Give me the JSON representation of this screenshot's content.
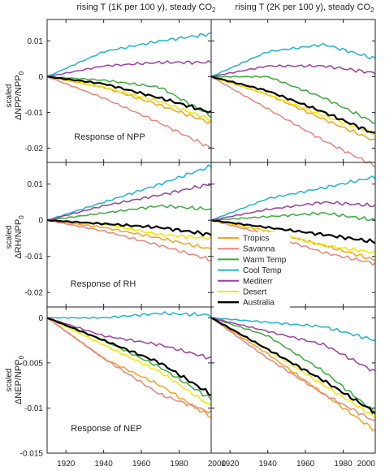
{
  "column_titles": [
    {
      "main": "rising T (1K per 100 y), steady CO",
      "sub": "2"
    },
    {
      "main": "rising T (2K per 100 y), steady CO",
      "sub": "2"
    }
  ],
  "row_ylabels": [
    {
      "top": "scaled",
      "main": "ΔNPP/NPP",
      "sub": "0"
    },
    {
      "top": "scaled",
      "main": "ΔRH/NPP",
      "sub": "0"
    },
    {
      "top": "scaled",
      "main": "ΔNEP/NPP",
      "sub": "0"
    }
  ],
  "annotations": [
    "Response of NPP",
    "Response of RH",
    "Response of NEP"
  ],
  "x_tick_labels": [
    "1920",
    "1940",
    "1960",
    "1980",
    "2000"
  ],
  "legend": [
    "Tropics",
    "Savanna",
    "Warm Temp",
    "Cool Temp",
    "Mediterr",
    "Desert",
    "Australia"
  ],
  "colors": {
    "Tropics": "#f5a31a",
    "Savanna": "#e8857a",
    "Warm Temp": "#3aab3a",
    "Cool Temp": "#1fb3cf",
    "Mediterr": "#9b3f9f",
    "Desert": "#f2e600",
    "Australia": "#000000"
  },
  "chart_data": [
    {
      "type": "line",
      "row": 0,
      "col": 0,
      "x": [
        1910,
        1940,
        1970,
        1997
      ],
      "xlim": [
        1910,
        1997
      ],
      "ylim": [
        -0.024,
        0.016
      ],
      "ytick_labels": [
        "0.01",
        "0",
        "-0.01",
        "-0.02"
      ],
      "ytick_values": [
        0.01,
        0,
        -0.01,
        -0.02
      ],
      "series": [
        {
          "name": "Tropics",
          "values": [
            0,
            -0.003,
            -0.008,
            -0.013
          ]
        },
        {
          "name": "Savanna",
          "values": [
            0,
            -0.006,
            -0.013,
            -0.02
          ]
        },
        {
          "name": "Warm Temp",
          "values": [
            0,
            -0.001,
            -0.003,
            -0.011
          ]
        },
        {
          "name": "Cool Temp",
          "values": [
            0,
            0.007,
            0.01,
            0.012
          ]
        },
        {
          "name": "Mediterr",
          "values": [
            0,
            0.003,
            0.004,
            0.004
          ]
        },
        {
          "name": "Desert",
          "values": [
            0,
            -0.003,
            -0.007,
            -0.012
          ]
        },
        {
          "name": "Australia",
          "values": [
            0,
            -0.002,
            -0.006,
            -0.01
          ]
        }
      ]
    },
    {
      "type": "line",
      "row": 0,
      "col": 1,
      "x": [
        1910,
        1940,
        1970,
        1997
      ],
      "xlim": [
        1910,
        1997
      ],
      "ylim": [
        -0.024,
        0.016
      ],
      "ytick_labels": [
        "0.01",
        "0",
        "-0.01",
        "-0.02"
      ],
      "ytick_values": [
        0.01,
        0,
        -0.01,
        -0.02
      ],
      "series": [
        {
          "name": "Tropics",
          "values": [
            0,
            -0.005,
            -0.012,
            -0.018
          ]
        },
        {
          "name": "Savanna",
          "values": [
            0,
            -0.009,
            -0.018,
            -0.025
          ]
        },
        {
          "name": "Warm Temp",
          "values": [
            0,
            0,
            -0.006,
            -0.013
          ]
        },
        {
          "name": "Cool Temp",
          "values": [
            0,
            0.007,
            0.009,
            0.005
          ]
        },
        {
          "name": "Mediterr",
          "values": [
            0,
            0.003,
            0.003,
            0.001
          ]
        },
        {
          "name": "Desert",
          "values": [
            0,
            -0.005,
            -0.011,
            -0.016
          ]
        },
        {
          "name": "Australia",
          "values": [
            0,
            -0.004,
            -0.01,
            -0.016
          ]
        }
      ]
    },
    {
      "type": "line",
      "row": 1,
      "col": 0,
      "x": [
        1910,
        1940,
        1970,
        1997
      ],
      "xlim": [
        1910,
        1997
      ],
      "ylim": [
        -0.024,
        0.016
      ],
      "ytick_labels": [
        "0.01",
        "0",
        "-0.01",
        "-0.02"
      ],
      "ytick_values": [
        0.01,
        0,
        -0.01,
        -0.02
      ],
      "series": [
        {
          "name": "Tropics",
          "values": [
            0,
            -0.002,
            -0.005,
            -0.008
          ]
        },
        {
          "name": "Savanna",
          "values": [
            0,
            -0.003,
            -0.007,
            -0.011
          ]
        },
        {
          "name": "Warm Temp",
          "values": [
            0,
            0.002,
            0.004,
            0.003
          ]
        },
        {
          "name": "Cool Temp",
          "values": [
            0,
            0.005,
            0.01,
            0.015
          ]
        },
        {
          "name": "Mediterr",
          "values": [
            0,
            0.004,
            0.007,
            0.01
          ]
        },
        {
          "name": "Desert",
          "values": [
            0,
            -0.001,
            -0.004,
            -0.005
          ]
        },
        {
          "name": "Australia",
          "values": [
            0,
            -0.001,
            -0.002,
            -0.004
          ]
        }
      ]
    },
    {
      "type": "line",
      "row": 1,
      "col": 1,
      "x": [
        1910,
        1940,
        1970,
        1997
      ],
      "xlim": [
        1910,
        1997
      ],
      "ylim": [
        -0.024,
        0.016
      ],
      "ytick_labels": [
        "0.01",
        "0",
        "-0.01",
        "-0.02"
      ],
      "ytick_values": [
        0.01,
        0,
        -0.01,
        -0.02
      ],
      "series": [
        {
          "name": "Tropics",
          "values": [
            0,
            -0.003,
            -0.007,
            -0.011
          ]
        },
        {
          "name": "Savanna",
          "values": [
            0,
            -0.004,
            -0.009,
            -0.012
          ]
        },
        {
          "name": "Warm Temp",
          "values": [
            0,
            0.001,
            0.002,
            0.0
          ]
        },
        {
          "name": "Cool Temp",
          "values": [
            0,
            0.006,
            0.009,
            0.012
          ]
        },
        {
          "name": "Mediterr",
          "values": [
            0,
            0.003,
            0.005,
            0.004
          ]
        },
        {
          "name": "Desert",
          "values": [
            0,
            -0.003,
            -0.007,
            -0.009
          ]
        },
        {
          "name": "Australia",
          "values": [
            0,
            -0.002,
            -0.004,
            -0.006
          ]
        }
      ]
    },
    {
      "type": "line",
      "row": 2,
      "col": 0,
      "x": [
        1910,
        1940,
        1970,
        1997
      ],
      "xlim": [
        1910,
        1997
      ],
      "ylim": [
        -0.015,
        0.0012
      ],
      "ytick_labels": [
        "0",
        "-0.005",
        "-0.01",
        "-0.015"
      ],
      "ytick_values": [
        0,
        -0.005,
        -0.01,
        -0.015
      ],
      "series": [
        {
          "name": "Tropics",
          "values": [
            0,
            -0.0045,
            -0.0075,
            -0.011
          ]
        },
        {
          "name": "Savanna",
          "values": [
            0,
            -0.0045,
            -0.0085,
            -0.0105
          ]
        },
        {
          "name": "Warm Temp",
          "values": [
            0,
            -0.0025,
            -0.0055,
            -0.009
          ]
        },
        {
          "name": "Cool Temp",
          "values": [
            0,
            0,
            0.0005,
            0.0003
          ]
        },
        {
          "name": "Mediterr",
          "values": [
            0,
            -0.002,
            -0.003,
            -0.0045
          ]
        },
        {
          "name": "Desert",
          "values": [
            0,
            -0.003,
            -0.006,
            -0.0098
          ]
        },
        {
          "name": "Australia",
          "values": [
            0,
            -0.0025,
            -0.005,
            -0.0085
          ]
        }
      ]
    },
    {
      "type": "line",
      "row": 2,
      "col": 1,
      "x": [
        1910,
        1940,
        1970,
        1997
      ],
      "xlim": [
        1910,
        1997
      ],
      "ylim": [
        -0.015,
        0.0012
      ],
      "ytick_labels": [
        "0",
        "-0.005",
        "-0.01",
        "-0.015"
      ],
      "ytick_values": [
        0,
        -0.005,
        -0.01,
        -0.015
      ],
      "series": [
        {
          "name": "Tropics",
          "values": [
            0,
            -0.004,
            -0.0085,
            -0.0125
          ]
        },
        {
          "name": "Savanna",
          "values": [
            0,
            -0.0045,
            -0.0085,
            -0.0115
          ]
        },
        {
          "name": "Warm Temp",
          "values": [
            0,
            -0.002,
            -0.006,
            -0.0105
          ]
        },
        {
          "name": "Cool Temp",
          "values": [
            0,
            -0.0005,
            -0.001,
            -0.0025
          ]
        },
        {
          "name": "Mediterr",
          "values": [
            0,
            -0.0015,
            -0.003,
            -0.006
          ]
        },
        {
          "name": "Desert",
          "values": [
            0,
            -0.0035,
            -0.0075,
            -0.011
          ]
        },
        {
          "name": "Australia",
          "values": [
            0,
            -0.0035,
            -0.007,
            -0.0105
          ]
        }
      ]
    }
  ]
}
